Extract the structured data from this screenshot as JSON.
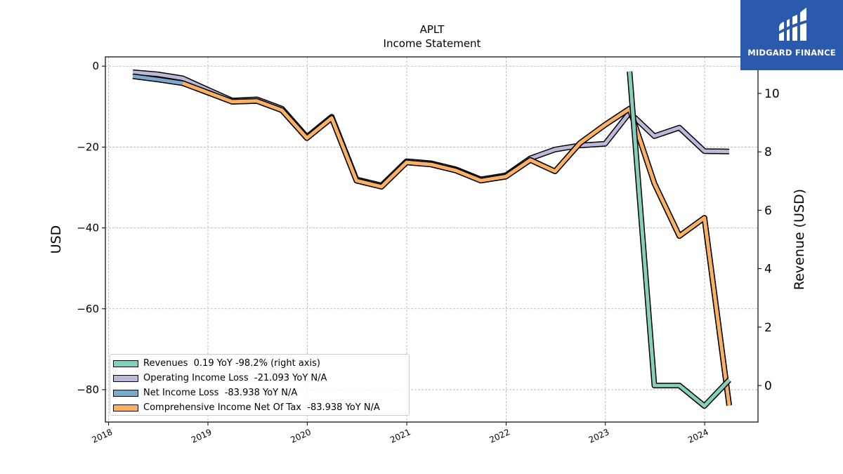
{
  "chart_data": {
    "type": "line",
    "title": "APLT",
    "subtitle": "Income Statement",
    "ylabel_left": "USD",
    "ylabel_right": "Revenue (USD)",
    "x_ticks": [
      "2018",
      "2019",
      "2020",
      "2021",
      "2022",
      "2023",
      "2024"
    ],
    "y_left_ticks": [
      0,
      -20,
      -40,
      -60,
      -80
    ],
    "y_right_ticks": [
      0,
      2,
      4,
      6,
      8,
      10
    ],
    "y_left_range": [
      -88,
      2.3
    ],
    "y_right_range": [
      -1.25,
      11.25
    ],
    "x_range": [
      "2017-12-20",
      "2024-07-15"
    ],
    "grid": true,
    "legend_position": "lower-left",
    "series": [
      {
        "name": "Operating Income Loss",
        "legend": "Operating Income Loss  -21.093 YoY N/A",
        "axis": "left",
        "color": "#bcb8d9",
        "x": [
          "2018-03-31",
          "2018-06-30",
          "2018-09-30",
          "2018-12-31",
          "2019-03-31",
          "2019-06-30",
          "2019-09-30",
          "2019-12-31",
          "2020-03-31",
          "2020-06-30",
          "2020-09-30",
          "2020-12-31",
          "2021-03-31",
          "2021-06-30",
          "2021-09-30",
          "2021-12-31",
          "2022-03-31",
          "2022-06-30",
          "2022-09-30",
          "2022-12-31",
          "2023-03-31",
          "2023-06-30",
          "2023-09-30",
          "2023-12-31",
          "2024-03-31"
        ],
        "values": [
          -1.5,
          -2.0,
          -3.0,
          -5.8,
          -8.5,
          -8.2,
          -10.5,
          -17.5,
          -12.5,
          -28.0,
          -29.5,
          -23.5,
          -24.0,
          -25.5,
          -28.0,
          -27.0,
          -22.8,
          -20.6,
          -19.6,
          -19.2,
          -11.5,
          -17.3,
          -15.2,
          -21.0,
          -21.1
        ]
      },
      {
        "name": "Net Income Loss",
        "legend": "Net Income Loss  -83.938 YoY N/A",
        "axis": "left",
        "color": "#7aabcd",
        "x": [
          "2018-03-31",
          "2018-06-30",
          "2018-09-30",
          "2018-12-31",
          "2019-03-31",
          "2019-06-30",
          "2019-09-30",
          "2019-12-31",
          "2020-03-31",
          "2020-06-30",
          "2020-09-30",
          "2020-12-31",
          "2021-03-31",
          "2021-06-30",
          "2021-09-30",
          "2021-12-31",
          "2022-03-31",
          "2022-06-30",
          "2022-09-30",
          "2022-12-31",
          "2023-03-31",
          "2023-06-30",
          "2023-09-30",
          "2023-12-31",
          "2024-03-31"
        ],
        "values": [
          -2.5,
          -3.3,
          -4.2,
          -6.5,
          -8.8,
          -8.6,
          -10.9,
          -17.8,
          -12.8,
          -28.3,
          -29.8,
          -23.8,
          -24.3,
          -25.8,
          -28.3,
          -27.3,
          -23.2,
          -26.0,
          -19.0,
          -14.5,
          -10.5,
          -29.0,
          -42.0,
          -37.5,
          -83.9
        ]
      },
      {
        "name": "Comprehensive Income Net Of Tax",
        "legend": "Comprehensive Income Net Of Tax  -83.938 YoY N/A",
        "axis": "left",
        "color": "#fbb163",
        "x": [
          "2018-09-30",
          "2018-12-31",
          "2019-03-31",
          "2019-06-30",
          "2019-09-30",
          "2019-12-31",
          "2020-03-31",
          "2020-06-30",
          "2020-09-30",
          "2020-12-31",
          "2021-03-31",
          "2021-06-30",
          "2021-09-30",
          "2021-12-31",
          "2022-03-31",
          "2022-06-30",
          "2022-09-30",
          "2022-12-31",
          "2023-03-31",
          "2023-06-30",
          "2023-09-30",
          "2023-12-31",
          "2024-03-31"
        ],
        "values": [
          -4.2,
          -6.5,
          -8.8,
          -8.6,
          -10.9,
          -17.8,
          -12.8,
          -28.3,
          -29.8,
          -23.8,
          -24.3,
          -25.8,
          -28.3,
          -27.3,
          -23.2,
          -26.0,
          -19.0,
          -14.5,
          -10.5,
          -29.0,
          -42.0,
          -37.5,
          -83.9
        ]
      },
      {
        "name": "Revenues",
        "legend": "Revenues  0.19 YoY -98.2% (right axis)",
        "axis": "right",
        "color": "#85cfbd",
        "x": [
          "2023-03-31",
          "2023-06-30",
          "2023-09-30",
          "2023-12-31",
          "2024-03-31"
        ],
        "values": [
          10.75,
          0.0,
          0.0,
          -0.7,
          0.19
        ]
      }
    ]
  },
  "legend_order": [
    3,
    0,
    1,
    2
  ],
  "logo": {
    "name": "MIDGARD FINANCE",
    "background": "#2b5aad"
  }
}
